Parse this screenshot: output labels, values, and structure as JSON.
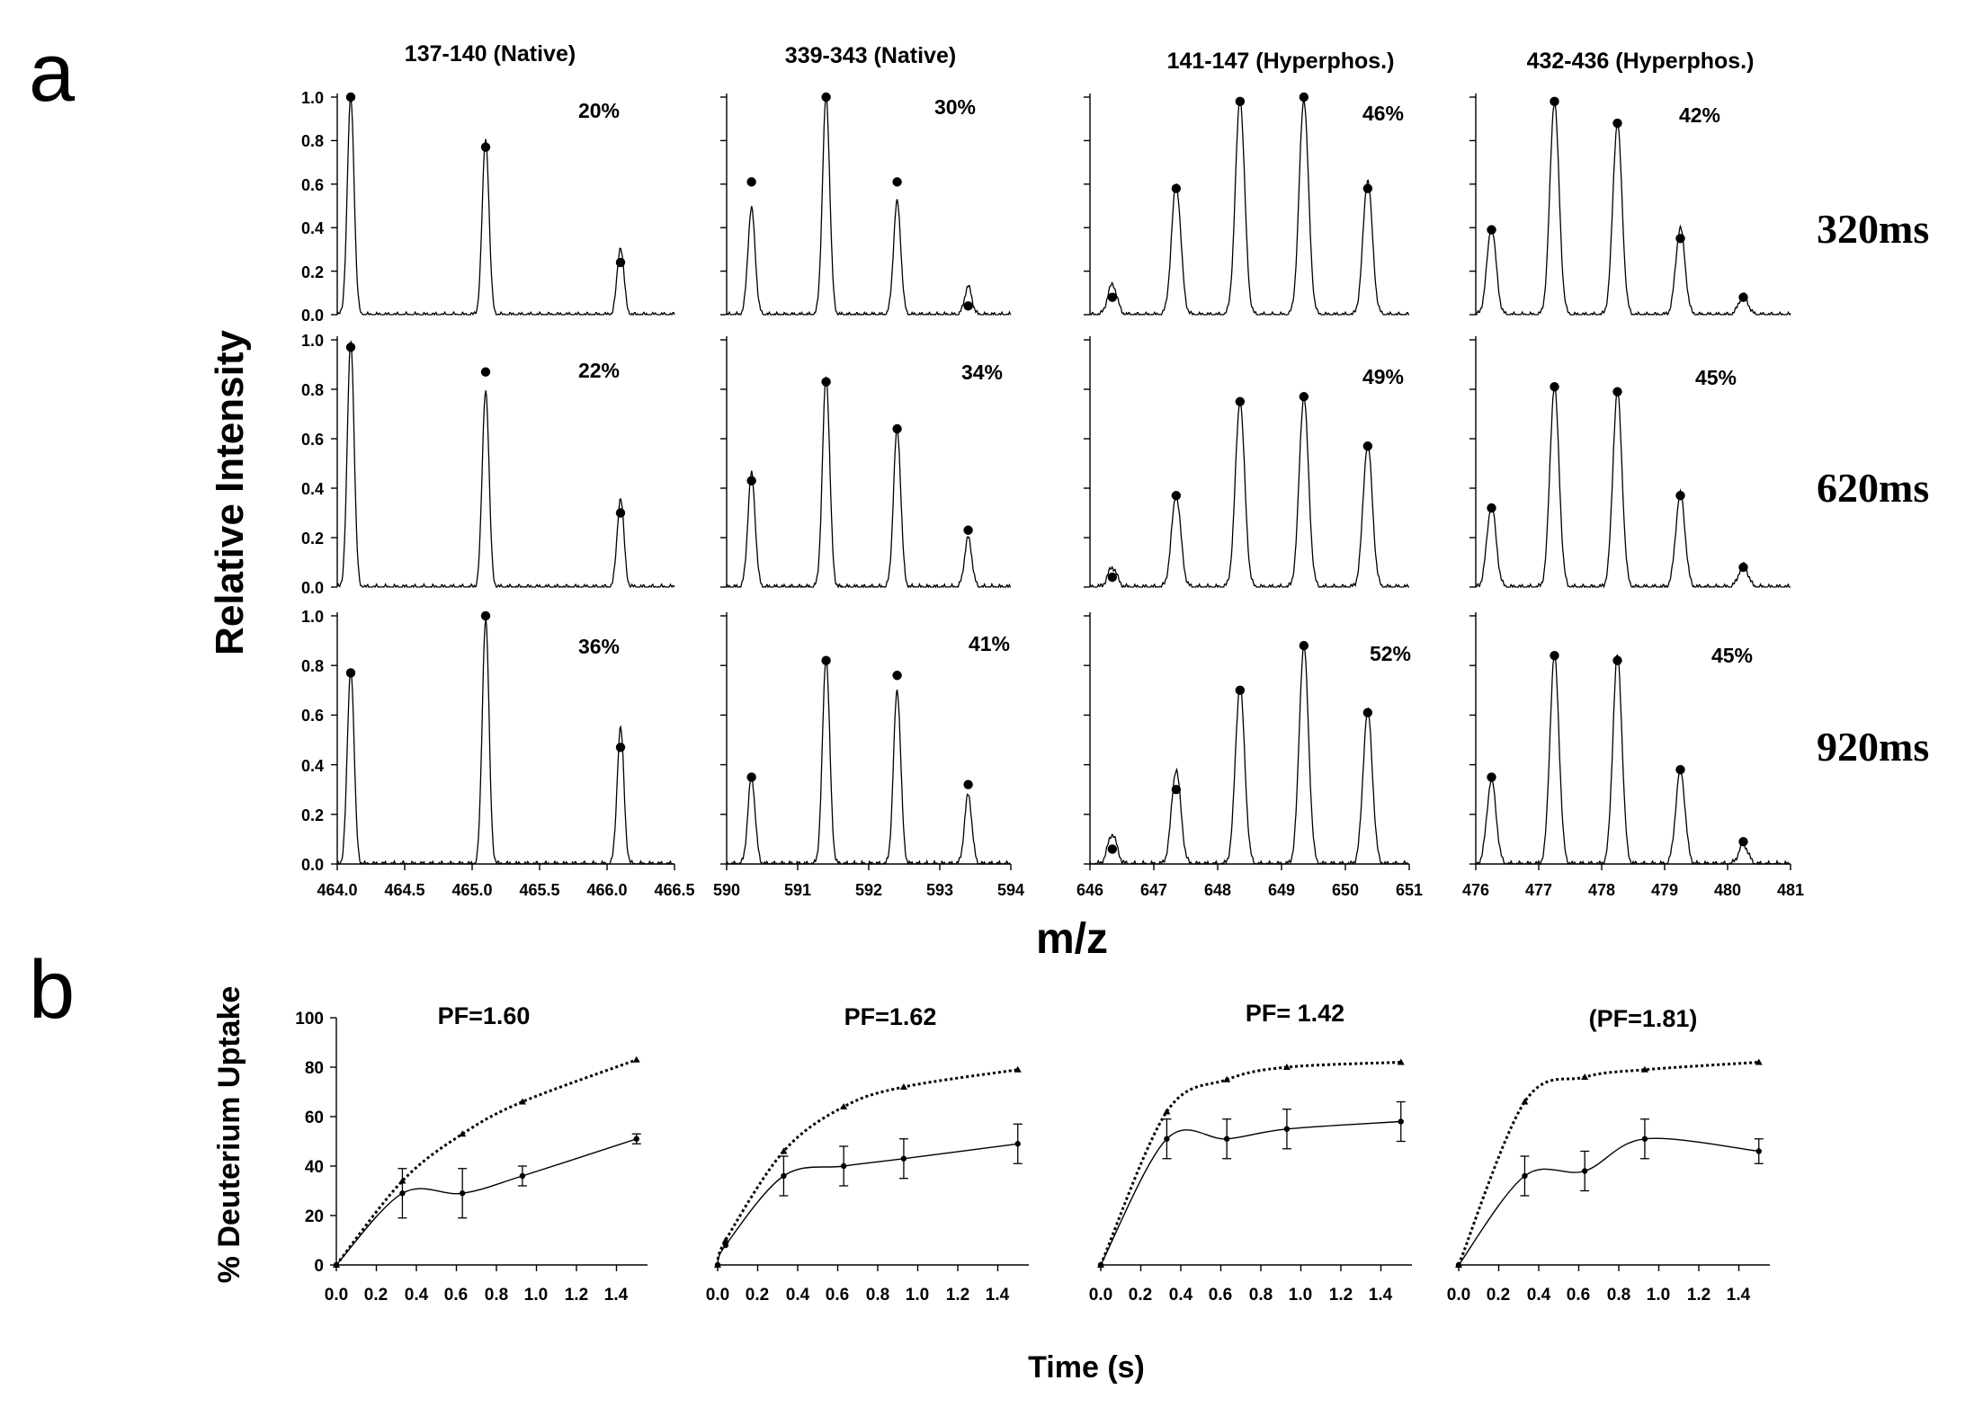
{
  "panel_labels": {
    "a": "a",
    "b": "b"
  },
  "panel_a": {
    "ylabel": "Relative Intensity",
    "xlabel": "m/z",
    "y_ticks": [
      "0.0",
      "0.2",
      "0.4",
      "0.6",
      "0.8",
      "1.0"
    ],
    "row_labels": [
      "320ms",
      "620ms",
      "920ms"
    ]
  },
  "panel_b": {
    "ylabel": "% Deuterium Uptake",
    "xlabel": "Time (s)",
    "y_ticks": [
      "0",
      "20",
      "40",
      "60",
      "80",
      "100"
    ],
    "x_ticks": [
      "0.0",
      "0.2",
      "0.4",
      "0.6",
      "0.8",
      "1.0",
      "1.2",
      "1.4"
    ]
  },
  "chart_data": [
    {
      "type": "line",
      "name": "spectra-137-140",
      "title": "137-140 (Native)",
      "x_ticks": [
        "464.0",
        "464.5",
        "465.0",
        "465.5",
        "466.0",
        "466.5"
      ],
      "xlim": [
        464.0,
        466.5
      ],
      "ylim": [
        0,
        1
      ],
      "peak_mz": [
        464.1,
        465.1,
        466.1
      ],
      "rows": [
        {
          "label": "320ms",
          "percent": "20%",
          "observed": [
            1.0,
            0.81,
            0.31
          ],
          "theoretical": [
            1.0,
            0.77,
            0.24
          ]
        },
        {
          "label": "620ms",
          "percent": "22%",
          "observed": [
            1.0,
            0.8,
            0.36
          ],
          "theoretical": [
            0.97,
            0.87,
            0.3
          ]
        },
        {
          "label": "920ms",
          "percent": "36%",
          "observed": [
            0.79,
            0.99,
            0.55
          ],
          "theoretical": [
            0.77,
            1.0,
            0.47
          ]
        }
      ]
    },
    {
      "type": "line",
      "name": "spectra-339-343",
      "title": "339-343 (Native)",
      "x_ticks": [
        "590",
        "591",
        "592",
        "593",
        "594"
      ],
      "xlim": [
        590,
        594
      ],
      "ylim": [
        0,
        1
      ],
      "peak_mz": [
        590.35,
        591.4,
        592.4,
        593.4
      ],
      "rows": [
        {
          "label": "320ms",
          "percent": "30%",
          "observed": [
            0.49,
            1.0,
            0.52,
            0.13
          ],
          "theoretical": [
            0.61,
            1.0,
            0.61,
            0.04
          ]
        },
        {
          "label": "620ms",
          "percent": "34%",
          "observed": [
            0.46,
            0.85,
            0.64,
            0.2
          ],
          "theoretical": [
            0.43,
            0.83,
            0.64,
            0.23
          ]
        },
        {
          "label": "920ms",
          "percent": "41%",
          "observed": [
            0.35,
            0.83,
            0.7,
            0.28
          ],
          "theoretical": [
            0.35,
            0.82,
            0.76,
            0.32
          ]
        }
      ]
    },
    {
      "type": "line",
      "name": "spectra-141-147",
      "title": "141-147 (Hyperphos.)",
      "x_ticks": [
        "646",
        "647",
        "648",
        "649",
        "650",
        "651"
      ],
      "xlim": [
        646,
        651
      ],
      "ylim": [
        0,
        1
      ],
      "peak_mz": [
        646.35,
        647.35,
        648.35,
        649.35,
        650.35
      ],
      "rows": [
        {
          "label": "320ms",
          "percent": "46%",
          "observed": [
            0.14,
            0.6,
            0.99,
            0.99,
            0.62
          ],
          "theoretical": [
            0.08,
            0.58,
            0.98,
            1.0,
            0.58
          ]
        },
        {
          "label": "620ms",
          "percent": "49%",
          "observed": [
            0.08,
            0.37,
            0.75,
            0.77,
            0.58
          ],
          "theoretical": [
            0.04,
            0.37,
            0.75,
            0.77,
            0.57
          ]
        },
        {
          "label": "920ms",
          "percent": "52%",
          "observed": [
            0.12,
            0.38,
            0.72,
            0.88,
            0.62
          ],
          "theoretical": [
            0.06,
            0.3,
            0.7,
            0.88,
            0.61
          ]
        }
      ]
    },
    {
      "type": "line",
      "name": "spectra-432-436",
      "title": "432-436 (Hyperphos.)",
      "x_ticks": [
        "476",
        "477",
        "478",
        "479",
        "480",
        "481"
      ],
      "xlim": [
        476,
        481
      ],
      "ylim": [
        0,
        1
      ],
      "peak_mz": [
        476.25,
        477.25,
        478.25,
        479.25,
        480.25
      ],
      "rows": [
        {
          "label": "320ms",
          "percent": "42%",
          "observed": [
            0.4,
            0.98,
            0.88,
            0.4,
            0.09
          ],
          "theoretical": [
            0.39,
            0.98,
            0.88,
            0.35,
            0.08
          ]
        },
        {
          "label": "620ms",
          "percent": "45%",
          "observed": [
            0.33,
            0.81,
            0.79,
            0.38,
            0.09
          ],
          "theoretical": [
            0.32,
            0.81,
            0.79,
            0.37,
            0.08
          ]
        },
        {
          "label": "920ms",
          "percent": "45%",
          "observed": [
            0.34,
            0.84,
            0.84,
            0.38,
            0.08
          ],
          "theoretical": [
            0.35,
            0.84,
            0.82,
            0.38,
            0.09
          ]
        }
      ]
    },
    {
      "type": "line",
      "name": "uptake-1",
      "title": "PF=1.60",
      "xlim": [
        0,
        1.55
      ],
      "ylim": [
        0,
        100
      ],
      "series": [
        {
          "name": "fit-dotted",
          "style": "dotted",
          "x": [
            0,
            0.33,
            0.63,
            0.93,
            1.5
          ],
          "y": [
            0,
            34,
            53,
            66,
            83
          ]
        },
        {
          "name": "data-solid",
          "style": "solid",
          "x": [
            0,
            0.33,
            0.63,
            0.93,
            1.5
          ],
          "y": [
            0,
            29,
            29,
            36,
            51
          ],
          "err": [
            0,
            10,
            10,
            4,
            2
          ]
        }
      ]
    },
    {
      "type": "line",
      "name": "uptake-2",
      "title": "PF=1.62",
      "xlim": [
        0,
        1.55
      ],
      "ylim": [
        0,
        100
      ],
      "series": [
        {
          "name": "fit-dotted",
          "style": "dotted",
          "x": [
            0,
            0.04,
            0.33,
            0.63,
            0.93,
            1.5
          ],
          "y": [
            0,
            10,
            46,
            64,
            72,
            79
          ]
        },
        {
          "name": "data-solid",
          "style": "solid",
          "x": [
            0,
            0.04,
            0.33,
            0.63,
            0.93,
            1.5
          ],
          "y": [
            0,
            8,
            36,
            40,
            43,
            49
          ],
          "err": [
            0,
            0,
            8,
            8,
            8,
            8
          ]
        }
      ]
    },
    {
      "type": "line",
      "name": "uptake-3",
      "title": "PF= 1.42",
      "xlim": [
        0,
        1.55
      ],
      "ylim": [
        0,
        100
      ],
      "series": [
        {
          "name": "fit-dotted",
          "style": "dotted",
          "x": [
            0,
            0.33,
            0.63,
            0.93,
            1.5
          ],
          "y": [
            0,
            62,
            75,
            80,
            82
          ]
        },
        {
          "name": "data-solid",
          "style": "solid",
          "x": [
            0,
            0.33,
            0.63,
            0.93,
            1.5
          ],
          "y": [
            0,
            51,
            51,
            55,
            58
          ],
          "err": [
            0,
            8,
            8,
            8,
            8
          ]
        }
      ]
    },
    {
      "type": "line",
      "name": "uptake-4",
      "title": "(PF=1.81)",
      "xlim": [
        0,
        1.55
      ],
      "ylim": [
        0,
        100
      ],
      "series": [
        {
          "name": "fit-dotted",
          "style": "dotted",
          "x": [
            0,
            0.33,
            0.63,
            0.93,
            1.5
          ],
          "y": [
            0,
            66,
            76,
            79,
            82
          ]
        },
        {
          "name": "data-solid",
          "style": "solid",
          "x": [
            0,
            0.33,
            0.63,
            0.93,
            1.5
          ],
          "y": [
            0,
            36,
            38,
            51,
            46
          ],
          "err": [
            0,
            8,
            8,
            8,
            5
          ]
        }
      ]
    }
  ]
}
